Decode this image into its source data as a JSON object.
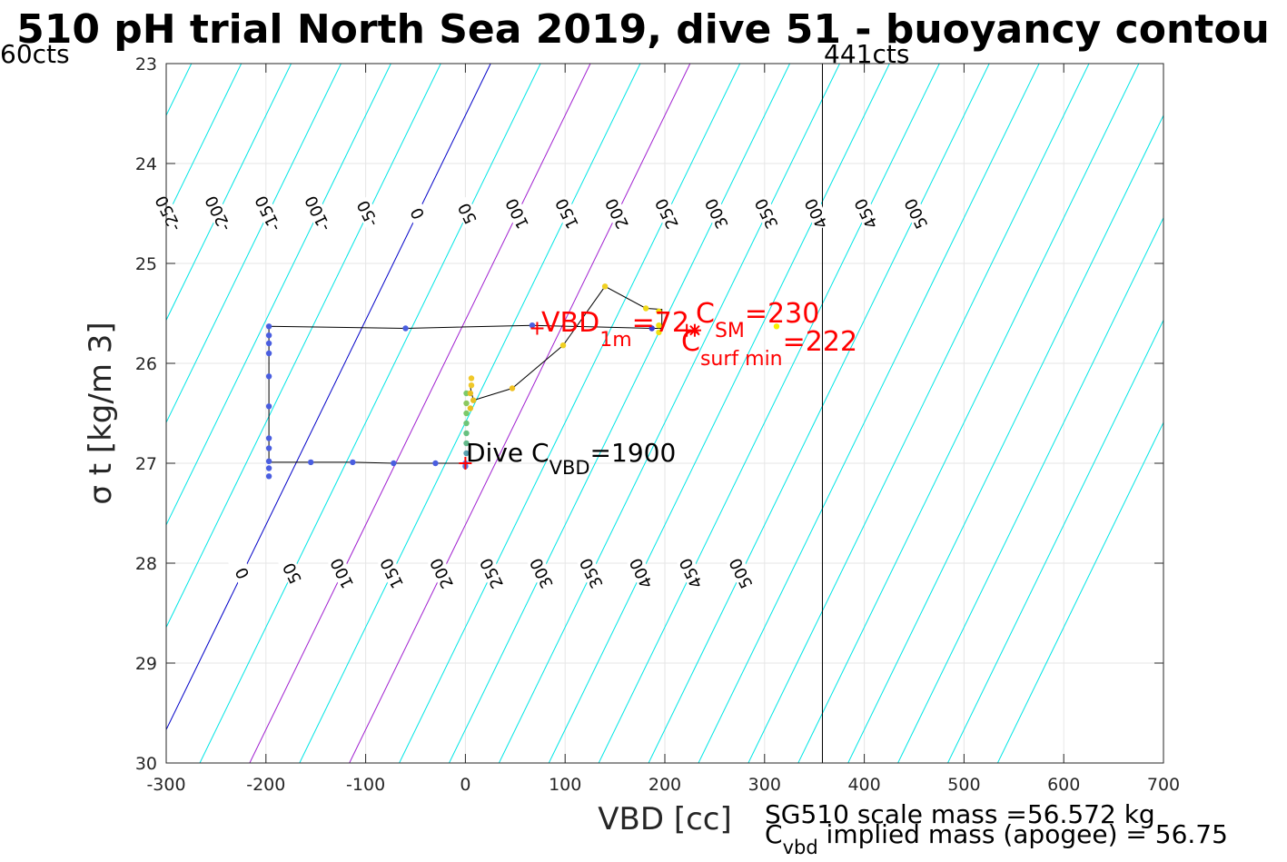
{
  "colors": {
    "contour": "#00e5e5",
    "contour_zero": "#0000c8",
    "contour_highlight": "#a020d0",
    "trajectory": "#000000",
    "annotation": "#ff0000",
    "grid": "#e6e6e6"
  },
  "chart_data": {
    "type": "scatter",
    "title": "510 pH trial North Sea 2019, dive 51 - buoyancy contou",
    "xlabel": "VBD [cc]",
    "ylabel": "σ t [kg/m 3]",
    "xlim": [
      -300,
      700
    ],
    "ylim": [
      23,
      30
    ],
    "y_reversed": true,
    "grid": true,
    "xticks": [
      -300,
      -200,
      -100,
      0,
      100,
      200,
      300,
      400,
      500,
      600,
      700
    ],
    "yticks": [
      23,
      24,
      25,
      26,
      27,
      28,
      29,
      30
    ],
    "contours": {
      "values": [
        -250,
        -200,
        -150,
        -100,
        -50,
        0,
        50,
        100,
        150,
        200,
        250,
        300,
        350,
        400,
        450,
        500
      ],
      "slope_cc_per_sigma": 48.8,
      "zero_line_at": {
        "x": 25.3,
        "y": 23
      },
      "highlighted": [
        100,
        200
      ],
      "zero_value": 0,
      "upper_labels": [
        {
          "text": "-250",
          "value": -250,
          "y": 24.5
        },
        {
          "text": "-200",
          "value": -200,
          "y": 24.5
        },
        {
          "text": "-150",
          "value": -150,
          "y": 24.5
        },
        {
          "text": "-100",
          "value": -100,
          "y": 24.5
        },
        {
          "text": "-50",
          "value": -50,
          "y": 24.5
        },
        {
          "text": "0",
          "value": 0,
          "y": 24.5
        },
        {
          "text": "50",
          "value": 50,
          "y": 24.5
        },
        {
          "text": "100",
          "value": 100,
          "y": 24.5
        },
        {
          "text": "150",
          "value": 150,
          "y": 24.5
        },
        {
          "text": "200",
          "value": 200,
          "y": 24.5
        },
        {
          "text": "250",
          "value": 250,
          "y": 24.5
        },
        {
          "text": "300",
          "value": 300,
          "y": 24.5
        },
        {
          "text": "350",
          "value": 350,
          "y": 24.5
        },
        {
          "text": "400",
          "value": 400,
          "y": 24.5
        },
        {
          "text": "450",
          "value": 450,
          "y": 24.5
        },
        {
          "text": "500",
          "value": 500,
          "y": 24.5
        }
      ],
      "lower_labels": [
        {
          "text": "0",
          "value": 0,
          "y": 28.1
        },
        {
          "text": "50",
          "value": 50,
          "y": 28.1
        },
        {
          "text": "100",
          "value": 100,
          "y": 28.1
        },
        {
          "text": "150",
          "value": 150,
          "y": 28.1
        },
        {
          "text": "200",
          "value": 200,
          "y": 28.1
        },
        {
          "text": "250",
          "value": 250,
          "y": 28.1
        },
        {
          "text": "300",
          "value": 300,
          "y": 28.1
        },
        {
          "text": "350",
          "value": 350,
          "y": 28.1
        },
        {
          "text": "400",
          "value": 400,
          "y": 28.1
        },
        {
          "text": "450",
          "value": 450,
          "y": 28.1
        },
        {
          "text": "500",
          "value": 500,
          "y": 28.1
        }
      ]
    },
    "vertical_line": {
      "x": 358,
      "label": "441cts"
    },
    "left_top_label": "60cts",
    "trajectory": [
      [
        0,
        27.0
      ],
      [
        -30,
        27.0
      ],
      [
        -72,
        27.0
      ],
      [
        -113,
        26.99
      ],
      [
        -155,
        26.99
      ],
      [
        -197,
        26.99
      ],
      [
        -197,
        26.8
      ],
      [
        -197,
        26.43
      ],
      [
        -197,
        26.13
      ],
      [
        -197,
        25.9
      ],
      [
        -197,
        25.75
      ],
      [
        -197,
        25.63
      ],
      [
        -60,
        25.65
      ],
      [
        67,
        25.62
      ],
      [
        187,
        25.65
      ],
      [
        197,
        25.65
      ],
      [
        197,
        25.46
      ],
      [
        181,
        25.45
      ],
      [
        140,
        25.23
      ],
      [
        98,
        25.82
      ],
      [
        47,
        26.25
      ],
      [
        8,
        26.37
      ],
      [
        4,
        26.2
      ]
    ],
    "points": [
      {
        "x": 0,
        "y": 27.0,
        "color": "#6080ff"
      },
      {
        "x": -30,
        "y": 27.0,
        "color": "#4a5ee0"
      },
      {
        "x": -72,
        "y": 27.0,
        "color": "#4a5ee0"
      },
      {
        "x": -113,
        "y": 26.99,
        "color": "#4a5ee0"
      },
      {
        "x": -155,
        "y": 26.99,
        "color": "#4a5ee0"
      },
      {
        "x": -197,
        "y": 27.13,
        "color": "#4a5ee0"
      },
      {
        "x": -197,
        "y": 27.05,
        "color": "#4a5ee0"
      },
      {
        "x": -197,
        "y": 26.98,
        "color": "#4a5ee0"
      },
      {
        "x": -197,
        "y": 26.85,
        "color": "#4a5ee0"
      },
      {
        "x": -197,
        "y": 26.75,
        "color": "#4a5ee0"
      },
      {
        "x": -197,
        "y": 26.43,
        "color": "#4a5ee0"
      },
      {
        "x": -197,
        "y": 26.13,
        "color": "#4a5ee0"
      },
      {
        "x": -197,
        "y": 25.9,
        "color": "#4a5ee0"
      },
      {
        "x": -197,
        "y": 25.8,
        "color": "#4a5ee0"
      },
      {
        "x": -197,
        "y": 25.72,
        "color": "#4a5ee0"
      },
      {
        "x": -197,
        "y": 25.63,
        "color": "#4a5ee0"
      },
      {
        "x": -60,
        "y": 25.65,
        "color": "#4a5ee0"
      },
      {
        "x": 67,
        "y": 25.62,
        "color": "#4a5ee0"
      },
      {
        "x": 187,
        "y": 25.65,
        "color": "#3a3ad0"
      },
      {
        "x": 1,
        "y": 26.3,
        "color": "#7cc96a"
      },
      {
        "x": 1,
        "y": 26.4,
        "color": "#8bc860"
      },
      {
        "x": 1,
        "y": 26.5,
        "color": "#7cc96a"
      },
      {
        "x": 1,
        "y": 26.6,
        "color": "#6ec578"
      },
      {
        "x": 1,
        "y": 26.7,
        "color": "#68c080"
      },
      {
        "x": 1,
        "y": 26.8,
        "color": "#63b98a"
      },
      {
        "x": 1,
        "y": 26.9,
        "color": "#5aa0b0"
      },
      {
        "x": 0,
        "y": 27.03,
        "color": "#5a7ae0"
      },
      {
        "x": 5,
        "y": 26.45,
        "color": "#e8c020"
      },
      {
        "x": 5,
        "y": 26.3,
        "color": "#e8c020"
      },
      {
        "x": 6,
        "y": 26.15,
        "color": "#f0c828"
      },
      {
        "x": 6,
        "y": 26.22,
        "color": "#f0c828"
      },
      {
        "x": 8,
        "y": 26.37,
        "color": "#e8c020"
      },
      {
        "x": 47,
        "y": 26.25,
        "color": "#f0c020"
      },
      {
        "x": 98,
        "y": 25.82,
        "color": "#f0d020"
      },
      {
        "x": 140,
        "y": 25.23,
        "color": "#f0d020"
      },
      {
        "x": 181,
        "y": 25.45,
        "color": "#f0d818"
      },
      {
        "x": 194,
        "y": 25.48,
        "color": "#f0e010"
      },
      {
        "x": 194,
        "y": 25.62,
        "color": "#f0e010"
      },
      {
        "x": 194,
        "y": 25.69,
        "color": "#f0e010"
      },
      {
        "x": 312,
        "y": 25.63,
        "color": "#f8f000"
      }
    ],
    "markers": [
      {
        "x": 72,
        "y": 25.65,
        "symbol": "+",
        "color": "#ff0000"
      },
      {
        "x": 230,
        "y": 25.67,
        "symbol": "*",
        "color": "#ff0000"
      },
      {
        "x": 222,
        "y": 25.67,
        "symbol": "+",
        "color": "#ff0000"
      },
      {
        "x": 0,
        "y": 27.0,
        "symbol": "+",
        "color": "#ff0000"
      }
    ],
    "annotations": {
      "vbd_1m": {
        "base": "VBD",
        "sub": "1m",
        "value": "=72"
      },
      "c_sm": {
        "base": "C",
        "sub": "SM",
        "value": "=230"
      },
      "c_surf": {
        "base": "C",
        "sub": "surf min",
        "value": "=222"
      },
      "dive": {
        "base": "Dive C",
        "sub": "VBD",
        "value": "=1900"
      }
    },
    "footer": {
      "scale_mass": "SG510 scale mass =56.572 kg",
      "implied_base": "C",
      "implied_sub": "vbd",
      "implied_text": " implied mass (apogee) = 56.75"
    }
  }
}
